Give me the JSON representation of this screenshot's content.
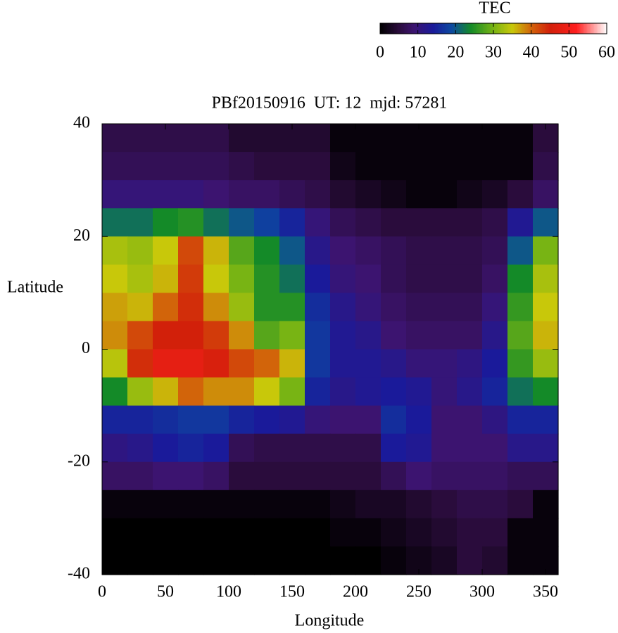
{
  "chart_data": {
    "type": "heatmap",
    "title": "PBf20150916  UT: 12  mjd: 57281",
    "xlabel": "Longitude",
    "ylabel": "Latitude",
    "colorbar_label": "TEC",
    "x": [
      10,
      30,
      50,
      70,
      90,
      110,
      130,
      150,
      170,
      190,
      210,
      230,
      250,
      270,
      290,
      310,
      330,
      350
    ],
    "y": [
      37.5,
      32.5,
      27.5,
      22.5,
      17.5,
      12.5,
      7.5,
      2.5,
      -2.5,
      -7.5,
      -12.5,
      -17.5,
      -22.5,
      -27.5,
      -32.5,
      -37.5
    ],
    "values": [
      [
        6,
        6,
        6,
        6,
        6,
        4,
        4,
        4,
        4,
        1,
        1,
        1,
        1,
        1,
        1,
        1,
        1,
        5
      ],
      [
        7,
        7,
        7,
        7,
        7,
        6,
        5,
        5,
        5,
        2,
        1,
        1,
        1,
        1,
        1,
        1,
        1,
        6
      ],
      [
        10,
        10,
        10,
        10,
        9,
        8,
        8,
        7,
        6,
        4,
        3,
        2,
        1,
        1,
        2,
        3,
        5,
        8
      ],
      [
        22,
        22,
        24,
        25,
        22,
        20,
        18,
        15,
        10,
        7,
        6,
        5,
        5,
        5,
        5,
        6,
        13,
        20
      ],
      [
        33,
        32,
        35,
        42,
        36,
        28,
        24,
        20,
        12,
        9,
        8,
        7,
        6,
        6,
        6,
        7,
        20,
        30
      ],
      [
        35,
        33,
        36,
        43,
        35,
        30,
        25,
        22,
        14,
        10,
        9,
        7,
        6,
        6,
        6,
        8,
        24,
        33
      ],
      [
        37,
        36,
        40,
        44,
        38,
        32,
        25,
        25,
        16,
        12,
        10,
        8,
        7,
        7,
        7,
        10,
        26,
        35
      ],
      [
        38,
        42,
        45,
        45,
        43,
        38,
        28,
        30,
        17,
        13,
        12,
        9,
        8,
        8,
        8,
        12,
        28,
        36
      ],
      [
        34,
        44,
        48,
        48,
        46,
        42,
        40,
        36,
        17,
        13,
        13,
        12,
        10,
        10,
        11,
        14,
        26,
        32
      ],
      [
        24,
        32,
        36,
        40,
        38,
        38,
        35,
        30,
        15,
        12,
        13,
        14,
        13,
        10,
        12,
        15,
        22,
        24
      ],
      [
        15,
        15,
        16,
        17,
        17,
        15,
        14,
        13,
        10,
        9,
        9,
        16,
        14,
        9,
        9,
        11,
        15,
        15
      ],
      [
        11,
        12,
        14,
        15,
        14,
        7,
        6,
        6,
        6,
        6,
        6,
        14,
        13,
        9,
        9,
        9,
        12,
        12
      ],
      [
        8,
        8,
        9,
        9,
        8,
        5,
        5,
        5,
        5,
        5,
        5,
        7,
        9,
        8,
        8,
        8,
        7,
        7
      ],
      [
        1,
        1,
        1,
        1,
        1,
        1,
        1,
        1,
        1,
        2,
        3,
        3,
        4,
        5,
        6,
        6,
        5,
        1
      ],
      [
        0,
        0,
        0,
        0,
        0,
        0,
        0,
        0,
        0,
        1,
        1,
        2,
        3,
        4,
        5,
        5,
        1,
        1
      ],
      [
        0,
        0,
        0,
        0,
        0,
        0,
        0,
        0,
        0,
        0,
        0,
        1,
        2,
        3,
        5,
        4,
        1,
        1
      ]
    ],
    "cell_width": 20,
    "cell_height": 5,
    "xlim": [
      0,
      360
    ],
    "xticks": [
      0,
      50,
      100,
      150,
      200,
      250,
      300,
      350
    ],
    "ylim": [
      -40,
      40
    ],
    "yticks": [
      -40,
      -20,
      0,
      20,
      40
    ],
    "clim": [
      0,
      60
    ],
    "cticks": [
      0,
      10,
      20,
      30,
      40,
      50,
      60
    ],
    "colormap": [
      {
        "value": 0,
        "color": "#000000"
      },
      {
        "value": 5,
        "color": "#2a0c3c"
      },
      {
        "value": 9,
        "color": "#3c1470"
      },
      {
        "value": 14,
        "color": "#1a1a9a"
      },
      {
        "value": 19,
        "color": "#0c4aa0"
      },
      {
        "value": 24,
        "color": "#148a28"
      },
      {
        "value": 30,
        "color": "#78b414"
      },
      {
        "value": 35,
        "color": "#c8c80a"
      },
      {
        "value": 40,
        "color": "#d2640a"
      },
      {
        "value": 45,
        "color": "#d2200a"
      },
      {
        "value": 52,
        "color": "#ff1e1e"
      },
      {
        "value": 60,
        "color": "#ffffff"
      }
    ]
  }
}
